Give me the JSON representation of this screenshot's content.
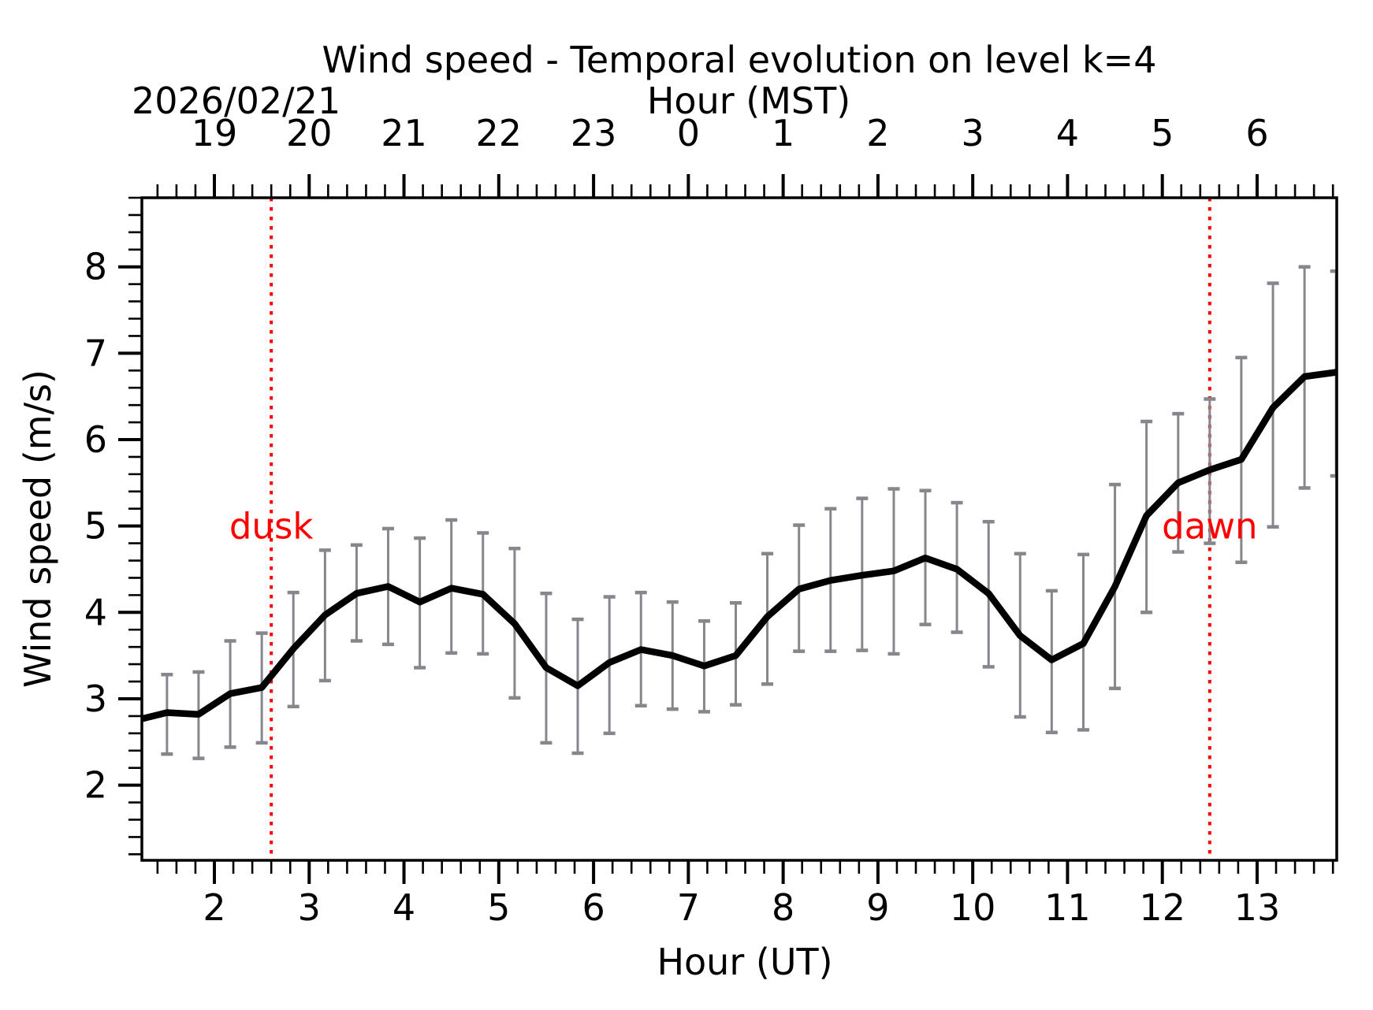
{
  "chart_data": {
    "type": "line",
    "title": "Wind speed - Temporal evolution on level k=4",
    "date_annotation": "2026/02/21",
    "xlabel": "Hour (UT)",
    "ylabel": "Wind speed (m/s)",
    "top_xlabel": "Hour (MST)",
    "xlim": [
      1.235,
      13.84
    ],
    "ylim": [
      1.13,
      8.8
    ],
    "grid": false,
    "legend": "none",
    "minor_tick_step": 0.2,
    "x_ticks": {
      "values": [
        2,
        3,
        4,
        5,
        6,
        7,
        8,
        9,
        10,
        11,
        12,
        13
      ],
      "labels": [
        "2",
        "3",
        "4",
        "5",
        "6",
        "7",
        "8",
        "9",
        "10",
        "11",
        "12",
        "13"
      ]
    },
    "top_ticks": {
      "values": [
        2,
        3,
        4,
        5,
        6,
        7,
        8,
        9,
        10,
        11,
        12,
        13
      ],
      "labels": [
        "19",
        "20",
        "21",
        "22",
        "23",
        "0",
        "1",
        "2",
        "3",
        "4",
        "5",
        "6"
      ]
    },
    "y_ticks": {
      "values": [
        2,
        3,
        4,
        5,
        6,
        7,
        8
      ],
      "labels": [
        "2",
        "3",
        "4",
        "5",
        "6",
        "7",
        "8"
      ]
    },
    "series": [
      {
        "name": "wind-speed-mean-with-error-bars",
        "x": [
          1.167,
          1.5,
          1.833,
          2.167,
          2.5,
          2.833,
          3.167,
          3.5,
          3.833,
          4.167,
          4.5,
          4.833,
          5.167,
          5.5,
          5.833,
          6.167,
          6.5,
          6.833,
          7.167,
          7.5,
          7.833,
          8.167,
          8.5,
          8.833,
          9.167,
          9.5,
          9.833,
          10.167,
          10.5,
          10.833,
          11.167,
          11.5,
          11.833,
          12.167,
          12.5,
          12.833,
          13.167,
          13.5,
          13.833
        ],
        "y": [
          2.75,
          2.84,
          2.82,
          3.06,
          3.13,
          3.58,
          3.97,
          4.22,
          4.3,
          4.12,
          4.28,
          4.21,
          3.87,
          3.36,
          3.15,
          3.42,
          3.57,
          3.5,
          3.38,
          3.5,
          3.95,
          4.27,
          4.37,
          4.43,
          4.48,
          4.63,
          4.5,
          4.22,
          3.73,
          3.45,
          3.64,
          4.3,
          5.12,
          5.5,
          5.65,
          5.77,
          6.37,
          6.73,
          6.78
        ],
        "err_low": [
          null,
          2.36,
          2.31,
          2.44,
          2.49,
          2.91,
          3.21,
          3.67,
          3.63,
          3.36,
          3.53,
          3.52,
          3.01,
          2.49,
          2.37,
          2.6,
          2.92,
          2.88,
          2.85,
          2.93,
          3.17,
          3.55,
          3.55,
          3.56,
          3.52,
          3.86,
          3.77,
          3.37,
          2.79,
          2.61,
          2.64,
          3.12,
          4.0,
          4.7,
          4.8,
          4.58,
          4.99,
          5.44,
          5.58
        ],
        "err_high": [
          null,
          3.28,
          3.31,
          3.67,
          3.76,
          4.23,
          4.72,
          4.78,
          4.97,
          4.86,
          5.07,
          4.92,
          4.74,
          4.22,
          3.92,
          4.18,
          4.23,
          4.12,
          3.9,
          4.11,
          4.68,
          5.01,
          5.2,
          5.32,
          5.43,
          5.41,
          5.27,
          5.05,
          4.68,
          4.25,
          4.67,
          5.48,
          6.21,
          6.3,
          6.47,
          6.95,
          7.81,
          8.0,
          7.95
        ]
      }
    ],
    "vlines": [
      {
        "x": 2.6,
        "label": "dusk",
        "label_y": 5.0,
        "style": "dotted"
      },
      {
        "x": 12.5,
        "label": "dawn",
        "label_y": 5.0,
        "style": "dotted"
      }
    ],
    "colors": {
      "line": "#000000",
      "error_bars": "#85878c",
      "vlines": "#ff0000",
      "annotation_text": "#ff0000",
      "axes": "#000000",
      "background": "#ffffff"
    }
  }
}
